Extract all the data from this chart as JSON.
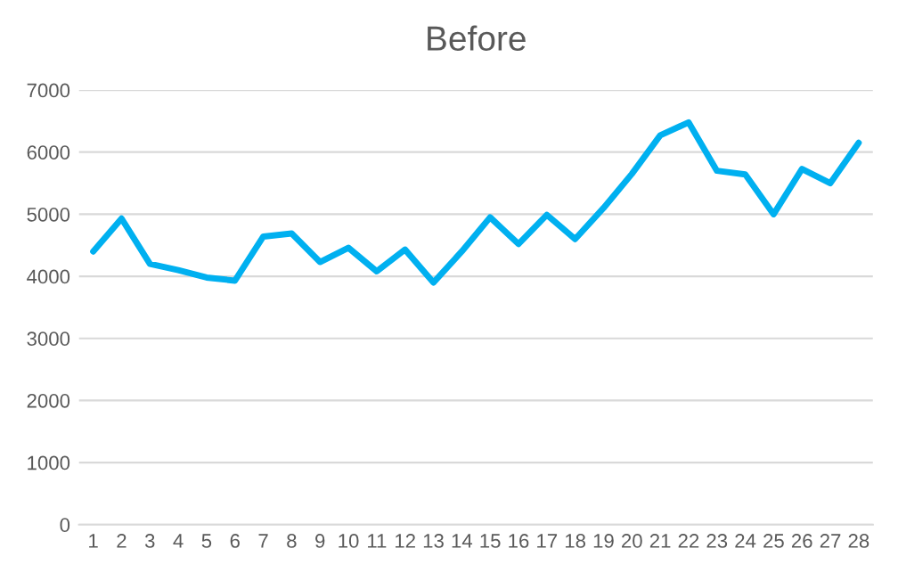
{
  "chart_data": {
    "type": "line",
    "title": "Before",
    "categories": [
      "1",
      "2",
      "3",
      "4",
      "5",
      "6",
      "7",
      "8",
      "9",
      "10",
      "11",
      "12",
      "13",
      "14",
      "15",
      "16",
      "17",
      "18",
      "19",
      "20",
      "21",
      "22",
      "23",
      "24",
      "25",
      "26",
      "27",
      "28"
    ],
    "series": [
      {
        "color": "#00b0f0",
        "values": [
          4400,
          4930,
          4200,
          4100,
          3980,
          3930,
          4640,
          4690,
          4230,
          4460,
          4080,
          4430,
          3900,
          4400,
          4950,
          4520,
          4990,
          4600,
          5100,
          5650,
          6270,
          6480,
          5700,
          5640,
          5000,
          5730,
          5500,
          6150
        ]
      }
    ],
    "ylim": [
      0,
      7000
    ],
    "yticks": [
      0,
      1000,
      2000,
      3000,
      4000,
      5000,
      6000,
      7000
    ],
    "grid": "y",
    "legend": false,
    "marker": "none",
    "line_style": "solid"
  }
}
